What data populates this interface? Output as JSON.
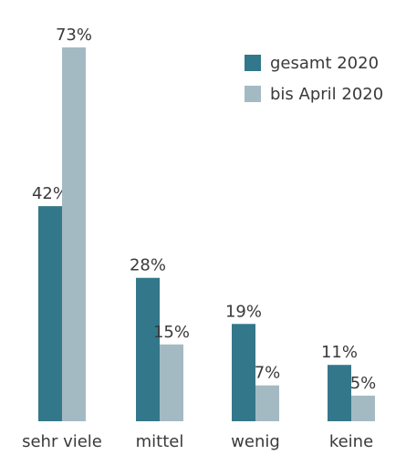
{
  "chart_data": {
    "type": "bar",
    "categories": [
      "sehr viele",
      "mittel",
      "wenig",
      "keine"
    ],
    "series": [
      {
        "name": "gesamt 2020",
        "values": [
          42,
          28,
          19,
          11
        ],
        "labels": [
          "42%",
          "28%",
          "19%",
          "11%"
        ],
        "color": "#33778a"
      },
      {
        "name": "bis April 2020",
        "values": [
          73,
          15,
          7,
          5
        ],
        "labels": [
          "73%",
          "15%",
          "7%",
          "5%"
        ],
        "color": "#a4bac3"
      }
    ],
    "ylim": [
      0,
      73
    ],
    "grid": false,
    "legend_position": "top-right"
  }
}
